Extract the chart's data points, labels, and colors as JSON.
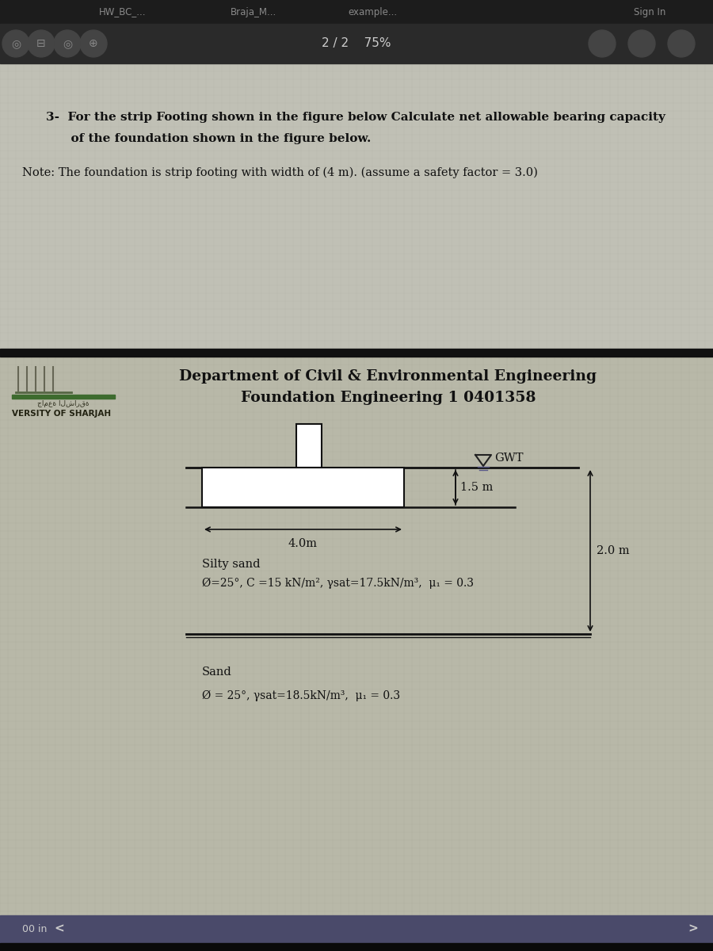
{
  "title_bar_color": "#1c1c1c",
  "toolbar_color": "#2e2e2e",
  "content_top_color": "#c2c2b8",
  "content_bot_color": "#b8b8aa",
  "sep_bar_color": "#111111",
  "status_bar_color": "#3a3a5a",
  "title_texts": [
    "HW_BC_...",
    "Braja_M...",
    "example...",
    "Sign In"
  ],
  "toolbar_center": "2 / 2    75%",
  "q_line1": "3-  For the strip Footing shown in the figure below Calculate net allowable bearing capacity",
  "q_line2": "      of the foundation shown in the figure below.",
  "note_line": "Note: The foundation is strip footing with width of (4 m). (assume a safety factor = 3.0)",
  "dept1": "Department of Civil & Environmental Engineering",
  "dept2": "Foundation Engineering 1 0401358",
  "univ": "VERSITY OF SHARJAH",
  "gwt": "GWT",
  "d15": "1.5 m",
  "d40": "4.0m",
  "d20": "2.0 m",
  "silty_lbl": "Silty sand",
  "silty_props": "Ø=25°, C =15 kN/m², γsat=17.5kN/m³,  μ₁ = 0.3",
  "sand_lbl": "Sand",
  "sand_props": "Ø = 25°, γsat=18.5kN/m³,  μ₁ = 0.3",
  "status_text": "00 in"
}
